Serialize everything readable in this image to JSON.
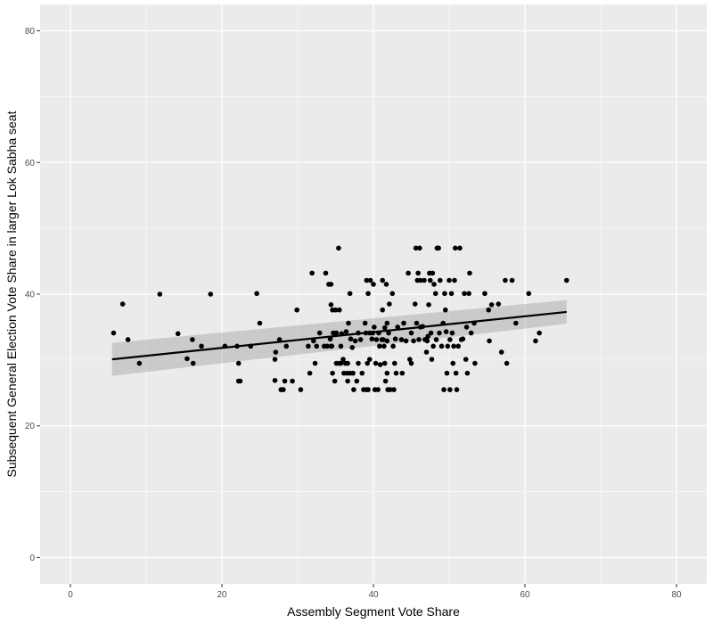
{
  "chart_data": {
    "type": "scatter",
    "xlabel": "Assembly Segment Vote Share",
    "ylabel": "Subsequent General Election Vote Share in larger Lok Sabha seat",
    "xlim": [
      -4,
      84
    ],
    "ylim": [
      -4,
      84
    ],
    "x_ticks": [
      0,
      20,
      40,
      60,
      80
    ],
    "y_ticks": [
      0,
      20,
      40,
      60,
      80
    ],
    "x_tick_labels": [
      "0",
      "20",
      "40",
      "60",
      "80"
    ],
    "y_tick_labels": [
      "0",
      "20",
      "40",
      "60",
      "80"
    ],
    "grid": true,
    "colors": {
      "panel_background": "#ebebeb",
      "grid_major": "#ffffff",
      "points": "#000000",
      "fit_line": "#000000",
      "confidence_band": "#999999"
    },
    "trend": {
      "type": "linear",
      "x": [
        5.5,
        65.5
      ],
      "y": [
        30.1,
        37.3
      ],
      "ci_lower": [
        27.6,
        35.5
      ],
      "ci_upper": [
        32.6,
        39.1
      ]
    },
    "points": [
      [
        5.7,
        34.1
      ],
      [
        6.9,
        38.5
      ],
      [
        7.6,
        33.1
      ],
      [
        9.1,
        29.5
      ],
      [
        11.8,
        40.0
      ],
      [
        14.2,
        34.0
      ],
      [
        15.4,
        30.2
      ],
      [
        16.1,
        33.1
      ],
      [
        16.2,
        29.5
      ],
      [
        17.3,
        32.1
      ],
      [
        18.5,
        40.0
      ],
      [
        20.4,
        32.1
      ],
      [
        22.0,
        32.1
      ],
      [
        22.2,
        29.5
      ],
      [
        22.2,
        26.8
      ],
      [
        22.4,
        26.8
      ],
      [
        23.8,
        32.1
      ],
      [
        24.6,
        40.1
      ],
      [
        25.0,
        35.6
      ],
      [
        27.0,
        26.9
      ],
      [
        27.0,
        30.1
      ],
      [
        27.1,
        31.2
      ],
      [
        27.6,
        33.1
      ],
      [
        27.8,
        25.5
      ],
      [
        28.1,
        25.5
      ],
      [
        28.3,
        26.8
      ],
      [
        28.5,
        32.1
      ],
      [
        29.3,
        26.8
      ],
      [
        29.9,
        37.6
      ],
      [
        30.4,
        25.5
      ],
      [
        31.4,
        32.1
      ],
      [
        31.6,
        28.0
      ],
      [
        31.9,
        43.2
      ],
      [
        32.1,
        32.9
      ],
      [
        32.3,
        29.5
      ],
      [
        32.5,
        32.1
      ],
      [
        32.9,
        34.1
      ],
      [
        33.5,
        32.1
      ],
      [
        33.7,
        43.2
      ],
      [
        33.9,
        32.1
      ],
      [
        34.1,
        41.5
      ],
      [
        34.3,
        33.2
      ],
      [
        34.4,
        41.5
      ],
      [
        34.4,
        38.4
      ],
      [
        34.4,
        32.1
      ],
      [
        34.5,
        32.1
      ],
      [
        34.6,
        28.0
      ],
      [
        34.6,
        37.6
      ],
      [
        34.7,
        34.1
      ],
      [
        34.9,
        26.8
      ],
      [
        35.0,
        37.6
      ],
      [
        35.1,
        34.1
      ],
      [
        35.1,
        29.5
      ],
      [
        35.4,
        47.0
      ],
      [
        35.5,
        29.5
      ],
      [
        35.5,
        37.6
      ],
      [
        35.7,
        29.5
      ],
      [
        35.7,
        32.1
      ],
      [
        35.8,
        34.0
      ],
      [
        36.0,
        30.1
      ],
      [
        36.1,
        28.0
      ],
      [
        36.3,
        29.5
      ],
      [
        36.4,
        34.3
      ],
      [
        36.5,
        28.0
      ],
      [
        36.6,
        29.5
      ],
      [
        36.6,
        26.8
      ],
      [
        36.7,
        35.6
      ],
      [
        36.9,
        28.0
      ],
      [
        36.9,
        40.1
      ],
      [
        37.0,
        33.2
      ],
      [
        37.2,
        31.9
      ],
      [
        37.3,
        28.0
      ],
      [
        37.4,
        25.5
      ],
      [
        37.6,
        32.9
      ],
      [
        37.8,
        26.8
      ],
      [
        38.0,
        34.1
      ],
      [
        38.0,
        29.5
      ],
      [
        38.3,
        33.1
      ],
      [
        38.5,
        28.0
      ],
      [
        38.7,
        25.5
      ],
      [
        38.9,
        35.6
      ],
      [
        39.0,
        34.1
      ],
      [
        39.1,
        25.5
      ],
      [
        39.1,
        42.1
      ],
      [
        39.2,
        29.5
      ],
      [
        39.3,
        40.1
      ],
      [
        39.3,
        25.5
      ],
      [
        39.5,
        30.1
      ],
      [
        39.5,
        34.1
      ],
      [
        39.6,
        42.1
      ],
      [
        39.8,
        33.2
      ],
      [
        39.9,
        34.1
      ],
      [
        40.0,
        41.5
      ],
      [
        40.1,
        35.0
      ],
      [
        40.2,
        25.5
      ],
      [
        40.3,
        29.5
      ],
      [
        40.4,
        33.1
      ],
      [
        40.6,
        25.5
      ],
      [
        40.7,
        34.1
      ],
      [
        40.8,
        32.1
      ],
      [
        40.9,
        29.3
      ],
      [
        41.1,
        33.1
      ],
      [
        41.2,
        42.1
      ],
      [
        41.2,
        37.6
      ],
      [
        41.3,
        33.1
      ],
      [
        41.4,
        32.1
      ],
      [
        41.5,
        34.9
      ],
      [
        41.5,
        29.5
      ],
      [
        41.6,
        26.8
      ],
      [
        41.7,
        41.5
      ],
      [
        41.8,
        35.6
      ],
      [
        41.8,
        32.9
      ],
      [
        41.8,
        28.0
      ],
      [
        41.9,
        25.5
      ],
      [
        42.0,
        34.1
      ],
      [
        42.1,
        38.5
      ],
      [
        42.2,
        25.5
      ],
      [
        42.5,
        40.1
      ],
      [
        42.6,
        32.1
      ],
      [
        42.7,
        25.5
      ],
      [
        42.8,
        29.5
      ],
      [
        42.9,
        33.2
      ],
      [
        43.0,
        28.0
      ],
      [
        43.2,
        35.0
      ],
      [
        43.7,
        33.1
      ],
      [
        43.8,
        28.0
      ],
      [
        44.0,
        35.6
      ],
      [
        44.3,
        32.9
      ],
      [
        44.6,
        43.2
      ],
      [
        44.8,
        30.1
      ],
      [
        45.0,
        29.5
      ],
      [
        45.0,
        34.1
      ],
      [
        45.3,
        32.9
      ],
      [
        45.5,
        38.5
      ],
      [
        45.6,
        47.0
      ],
      [
        45.7,
        35.6
      ],
      [
        45.8,
        42.1
      ],
      [
        45.9,
        43.2
      ],
      [
        46.0,
        33.1
      ],
      [
        46.1,
        47.0
      ],
      [
        46.2,
        42.1
      ],
      [
        46.2,
        35.0
      ],
      [
        46.5,
        35.1
      ],
      [
        46.7,
        42.1
      ],
      [
        46.8,
        33.1
      ],
      [
        47.0,
        31.2
      ],
      [
        47.1,
        32.9
      ],
      [
        47.2,
        33.6
      ],
      [
        47.3,
        38.4
      ],
      [
        47.4,
        43.2
      ],
      [
        47.5,
        42.1
      ],
      [
        47.6,
        34.1
      ],
      [
        47.7,
        30.1
      ],
      [
        47.8,
        43.2
      ],
      [
        47.9,
        32.1
      ],
      [
        48.0,
        41.5
      ],
      [
        48.2,
        40.1
      ],
      [
        48.3,
        33.1
      ],
      [
        48.4,
        47.0
      ],
      [
        48.6,
        47.0
      ],
      [
        48.7,
        34.1
      ],
      [
        48.8,
        42.1
      ],
      [
        49.0,
        32.1
      ],
      [
        49.2,
        35.6
      ],
      [
        49.3,
        25.5
      ],
      [
        49.4,
        40.1
      ],
      [
        49.5,
        37.6
      ],
      [
        49.6,
        34.3
      ],
      [
        49.7,
        28.0
      ],
      [
        49.8,
        32.1
      ],
      [
        50.0,
        42.1
      ],
      [
        50.1,
        33.1
      ],
      [
        50.1,
        25.5
      ],
      [
        50.3,
        40.1
      ],
      [
        50.4,
        34.1
      ],
      [
        50.5,
        29.5
      ],
      [
        50.6,
        32.1
      ],
      [
        50.7,
        42.1
      ],
      [
        50.8,
        47.0
      ],
      [
        50.9,
        28.0
      ],
      [
        51.0,
        25.5
      ],
      [
        51.2,
        32.1
      ],
      [
        51.4,
        47.0
      ],
      [
        51.6,
        33.1
      ],
      [
        51.8,
        33.2
      ],
      [
        52.0,
        40.1
      ],
      [
        52.2,
        30.1
      ],
      [
        52.3,
        35.0
      ],
      [
        52.4,
        28.0
      ],
      [
        52.6,
        40.1
      ],
      [
        52.7,
        43.2
      ],
      [
        52.9,
        34.1
      ],
      [
        53.3,
        35.6
      ],
      [
        53.4,
        29.5
      ],
      [
        54.7,
        40.1
      ],
      [
        55.2,
        37.6
      ],
      [
        55.3,
        32.9
      ],
      [
        55.6,
        38.4
      ],
      [
        56.5,
        38.5
      ],
      [
        56.9,
        31.2
      ],
      [
        57.4,
        42.1
      ],
      [
        57.6,
        29.5
      ],
      [
        58.3,
        42.1
      ],
      [
        58.8,
        35.6
      ],
      [
        60.5,
        40.1
      ],
      [
        61.4,
        32.9
      ],
      [
        61.9,
        34.1
      ],
      [
        65.5,
        42.1
      ]
    ]
  }
}
